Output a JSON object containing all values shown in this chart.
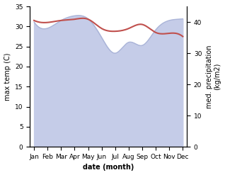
{
  "months": [
    "Jan",
    "Feb",
    "Mar",
    "Apr",
    "May",
    "Jun",
    "Jul",
    "Aug",
    "Sep",
    "Oct",
    "Nov",
    "Dec"
  ],
  "month_indices": [
    0,
    1,
    2,
    3,
    4,
    5,
    6,
    7,
    8,
    9,
    10,
    11
  ],
  "max_temp": [
    31.5,
    31.0,
    31.5,
    31.8,
    31.8,
    29.5,
    28.8,
    29.5,
    30.5,
    28.5,
    28.3,
    27.5
  ],
  "precipitation": [
    40.0,
    38.0,
    40.5,
    42.0,
    41.0,
    35.0,
    30.0,
    33.5,
    32.5,
    37.5,
    40.5,
    41.0
  ],
  "temp_color": "#c0504d",
  "precip_fill_color": "#c5cce8",
  "precip_line_color": "#aab4d8",
  "ylabel_left": "max temp (C)",
  "ylabel_right": "med. precipitation\n(kg/m2)",
  "xlabel": "date (month)",
  "ylim_left": [
    0,
    35
  ],
  "ylim_right": [
    0,
    45
  ],
  "yticks_left": [
    0,
    5,
    10,
    15,
    20,
    25,
    30,
    35
  ],
  "yticks_right": [
    0,
    10,
    20,
    30,
    40
  ],
  "label_fontsize": 7,
  "tick_fontsize": 6.5
}
